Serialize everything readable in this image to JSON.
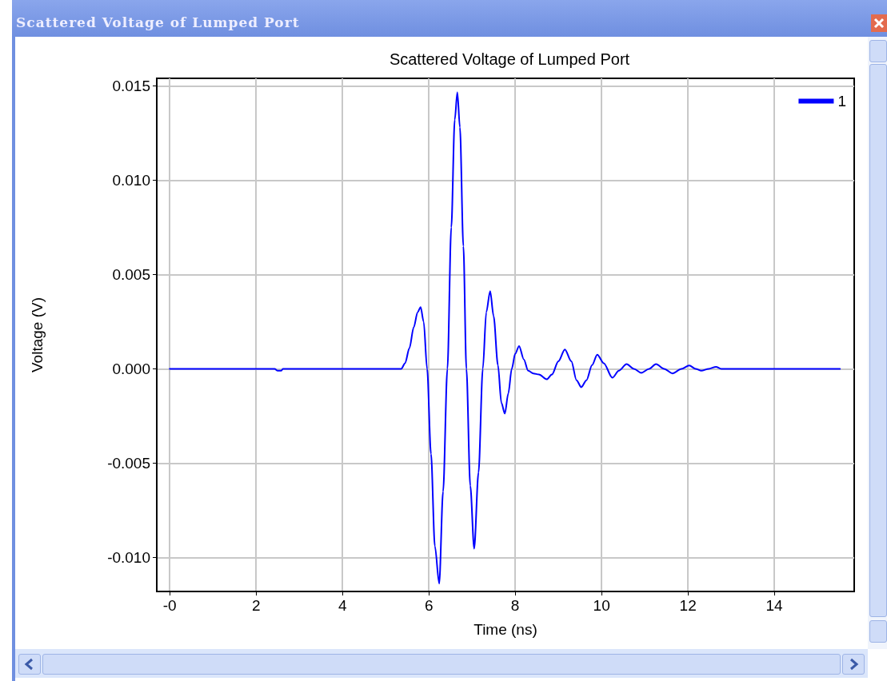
{
  "chart_data": {
    "type": "line",
    "title": "Scattered Voltage of Lumped Port",
    "xlabel": "Time (ns)",
    "ylabel": "Voltage (V)",
    "annotations": [
      "Scattered Voltage of Lumped Port"
    ],
    "series": [
      {
        "name": "1",
        "color": "#0000ff",
        "x": [
          0,
          1,
          2,
          2.43,
          2.5,
          2.58,
          2.62,
          3,
          4,
          5,
          5.36,
          5.45,
          5.55,
          5.65,
          5.74,
          5.81,
          5.88,
          5.96,
          6.05,
          6.14,
          6.24,
          6.33,
          6.43,
          6.52,
          6.6,
          6.66,
          6.72,
          6.8,
          6.87,
          6.96,
          7.05,
          7.15,
          7.25,
          7.33,
          7.42,
          7.5,
          7.6,
          7.68,
          7.76,
          7.84,
          7.92,
          8.0,
          8.09,
          8.2,
          8.3,
          8.42,
          8.55,
          8.73,
          8.85,
          9.0,
          9.15,
          9.3,
          9.42,
          9.53,
          9.65,
          9.78,
          9.9,
          10.05,
          10.25,
          10.4,
          10.58,
          10.75,
          10.92,
          11.1,
          11.26,
          11.45,
          11.64,
          11.85,
          12.03,
          12.18,
          12.31,
          12.48,
          12.65,
          12.77,
          13.5,
          14.5,
          15.52
        ],
        "values": [
          0,
          0,
          0,
          0,
          -0.0001,
          -0.0001,
          0,
          0,
          0,
          0,
          0,
          0.0003,
          0.0011,
          0.0022,
          0.003,
          0.00327,
          0.0025,
          0,
          -0.0045,
          -0.0094,
          -0.01138,
          -0.0065,
          0,
          0.0075,
          0.0132,
          0.01466,
          0.0128,
          0.0065,
          0,
          -0.0062,
          -0.00953,
          -0.0055,
          0,
          0.003,
          0.00412,
          0.0028,
          0.0002,
          -0.0018,
          -0.00237,
          -0.0013,
          0,
          0.0008,
          0.00121,
          0.0005,
          -0.0001,
          -0.00024,
          -0.0003,
          -0.00055,
          -0.0003,
          0.0004,
          0.00103,
          0.0004,
          -0.0006,
          -0.00097,
          -0.0006,
          0.0002,
          0.00075,
          0.0003,
          -0.00047,
          -0.0001,
          0.00025,
          0.0,
          -0.00021,
          0.0,
          0.00025,
          0.0,
          -0.00024,
          0.0,
          0.00018,
          0.0,
          -0.0001,
          0.0,
          0.00011,
          0,
          0,
          0,
          0
        ]
      }
    ],
    "xlim": [
      -0.3,
      15.85
    ],
    "ylim": [
      -0.0118,
      0.0154
    ],
    "xticks": [
      {
        "value": 0,
        "label": "-0"
      },
      2,
      4,
      6,
      8,
      10,
      12,
      14
    ],
    "yticks": [
      {
        "value": -0.01,
        "label": "-0.010"
      },
      {
        "value": -0.005,
        "label": "-0.005"
      },
      {
        "value": 0,
        "label": "0.000"
      },
      {
        "value": 0.005,
        "label": "0.005"
      },
      {
        "value": 0.01,
        "label": "0.010"
      },
      {
        "value": 0.015,
        "label": "0.015"
      }
    ],
    "grid": true,
    "legend": "top right",
    "marker": "none",
    "line_style": "solid"
  }
}
